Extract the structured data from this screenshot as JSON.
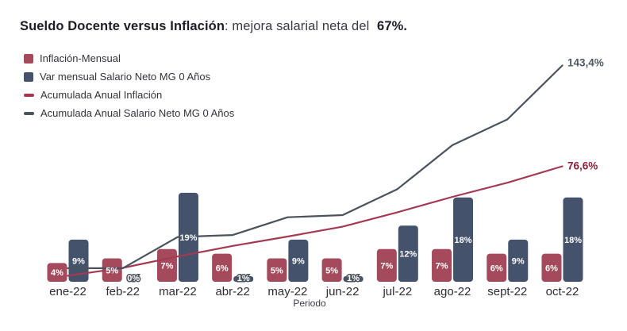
{
  "title": {
    "bold": "Sueldo Docente versus Inflación",
    "regular": ": mejora salarial neta del ",
    "highlight": "67%."
  },
  "legend": {
    "items": [
      {
        "label": "Inflación-Mensual",
        "color": "#a54a5c"
      },
      {
        "label": "Var mensual Salario Neto MG 0 Años",
        "color": "#44536b"
      },
      {
        "label": "Acumulada Anual Inflación",
        "color": "#a43a52"
      },
      {
        "label": "Acumulada Anual Salario Neto MG 0 Años",
        "color": "#4a525c"
      }
    ]
  },
  "chart_data": {
    "type": "bar",
    "subtype": "grouped bars with two cumulative line overlays",
    "categories": [
      "ene-22",
      "feb-22",
      "mar-22",
      "abr-22",
      "may-22",
      "jun-22",
      "jul-22",
      "ago-22",
      "sept-22",
      "oct-22"
    ],
    "xlabel": "Periodo",
    "grid": false,
    "y_axis_visible": false,
    "series": [
      {
        "name": "Inflación-Mensual",
        "type": "bar",
        "color": "#a54a5c",
        "values": [
          4,
          5,
          7,
          6,
          5,
          5,
          7,
          7,
          6,
          6
        ],
        "labels": [
          "4%",
          "5%",
          "7%",
          "6%",
          "5%",
          "5%",
          "7%",
          "7%",
          "6%",
          "6%"
        ]
      },
      {
        "name": "Var mensual Salario Neto MG 0 Años",
        "type": "bar",
        "color": "#44536b",
        "values": [
          9,
          0,
          19,
          1,
          9,
          1,
          12,
          18,
          9,
          18
        ],
        "labels": [
          "9%",
          "0%",
          "19%",
          "1%",
          "9%",
          "1%",
          "12%",
          "18%",
          "9%",
          "18%"
        ]
      },
      {
        "name": "Acumulada Anual Inflación",
        "type": "line",
        "color": "#a43a52",
        "values": [
          4,
          9.2,
          16.8,
          23.8,
          30.0,
          36.5,
          46.1,
          56.3,
          65.7,
          76.6
        ],
        "end_label": "76,6%",
        "end_label_color": "#8c2139"
      },
      {
        "name": "Acumulada Anual Salario Neto MG 0 Años",
        "type": "line",
        "color": "#4a525c",
        "values": [
          9,
          9,
          29.7,
          31.0,
          42.8,
          44.2,
          61.5,
          90.6,
          107.7,
          143.4
        ],
        "end_label": "143,4%",
        "end_label_color": "#4d5963"
      }
    ],
    "bar_label_color": "#ffffff",
    "tick_label_color": "#2e2e34",
    "xlabel_color": "#3c3c44"
  }
}
